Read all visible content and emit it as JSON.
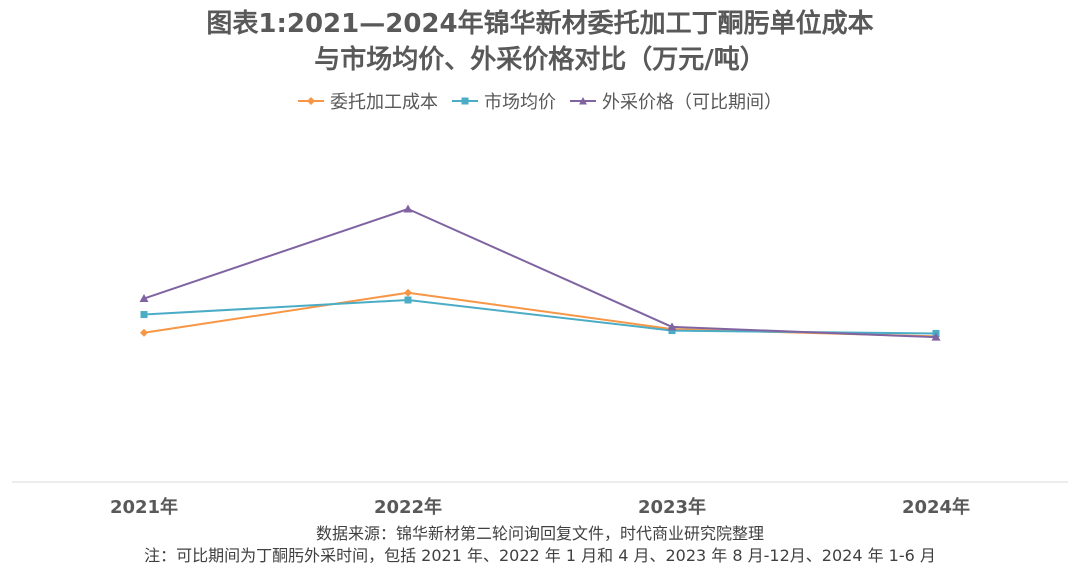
{
  "chart_data": {
    "type": "line",
    "title_line1": "图表1:2021—2024年锦华新材委托加工丁酮肟单位成本",
    "title_line2": "与市场均价、外采价格对比（万元/吨）",
    "categories": [
      "2021年",
      "2022年",
      "2023年",
      "2024年"
    ],
    "series": [
      {
        "name": "委托加工成本",
        "color": "#f79646",
        "marker": "diamond",
        "values": [
          2.05,
          2.6,
          2.1,
          2.0
        ]
      },
      {
        "name": "市场均价",
        "color": "#4bacc6",
        "marker": "square",
        "values": [
          2.3,
          2.5,
          2.08,
          2.04
        ]
      },
      {
        "name": "外采价格（可比期间）",
        "color": "#8064a2",
        "marker": "triangle",
        "values": [
          2.52,
          3.75,
          2.13,
          1.99
        ]
      }
    ],
    "ylim": [
      0,
      5.0
    ],
    "grid": false,
    "legend_position": "top"
  },
  "footer": {
    "source": "数据来源：锦华新材第二轮问询回复文件，时代商业研究院整理",
    "note": "注：可比期间为丁酮肟外采时间，包括 2021 年、2022 年 1 月和 4 月、2023 年 8 月-12月、2024 年 1-6 月"
  }
}
